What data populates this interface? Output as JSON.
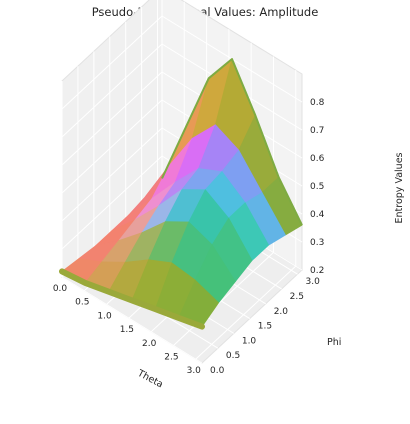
{
  "chart_data": {
    "type": "surface",
    "title": "Pseudo-Entropy Real Values: Amplitude",
    "xlabel": "Theta",
    "ylabel": "Phi",
    "zlabel": "Entropy Values",
    "xlim": [
      0.0,
      3.14
    ],
    "ylim": [
      0.0,
      3.14
    ],
    "zlim": [
      0.2,
      0.8
    ],
    "x_ticks": [
      "0.0",
      "0.5",
      "1.0",
      "1.5",
      "2.0",
      "2.5",
      "3.0"
    ],
    "y_ticks": [
      "0.0",
      "0.5",
      "1.0",
      "1.5",
      "2.0",
      "2.5",
      "3.0"
    ],
    "z_ticks": [
      "0.2",
      "0.3",
      "0.4",
      "0.5",
      "0.6",
      "0.7",
      "0.8"
    ],
    "grid": true,
    "surface_rows": [
      {
        "phi": 0.0,
        "colormap": "olive",
        "entropy": [
          0.22,
          0.23,
          0.25,
          0.27,
          0.29,
          0.31,
          0.33
        ]
      },
      {
        "phi": 0.52,
        "colormap": "green",
        "entropy": [
          0.21,
          0.25,
          0.3,
          0.36,
          0.4,
          0.39,
          0.36
        ]
      },
      {
        "phi": 1.05,
        "colormap": "teal",
        "entropy": [
          0.2,
          0.27,
          0.35,
          0.44,
          0.49,
          0.46,
          0.38
        ]
      },
      {
        "phi": 1.57,
        "colormap": "blue",
        "entropy": [
          0.2,
          0.29,
          0.39,
          0.5,
          0.55,
          0.5,
          0.4
        ]
      },
      {
        "phi": 2.09,
        "colormap": "violet",
        "entropy": [
          0.2,
          0.31,
          0.42,
          0.52,
          0.56,
          0.5,
          0.4
        ]
      },
      {
        "phi": 2.62,
        "colormap": "amber",
        "entropy": [
          0.21,
          0.37,
          0.52,
          0.62,
          0.58,
          0.48,
          0.38
        ]
      },
      {
        "phi": 3.14,
        "colormap": "red",
        "entropy": [
          0.22,
          0.45,
          0.68,
          0.8,
          0.65,
          0.48,
          0.36
        ]
      }
    ]
  }
}
